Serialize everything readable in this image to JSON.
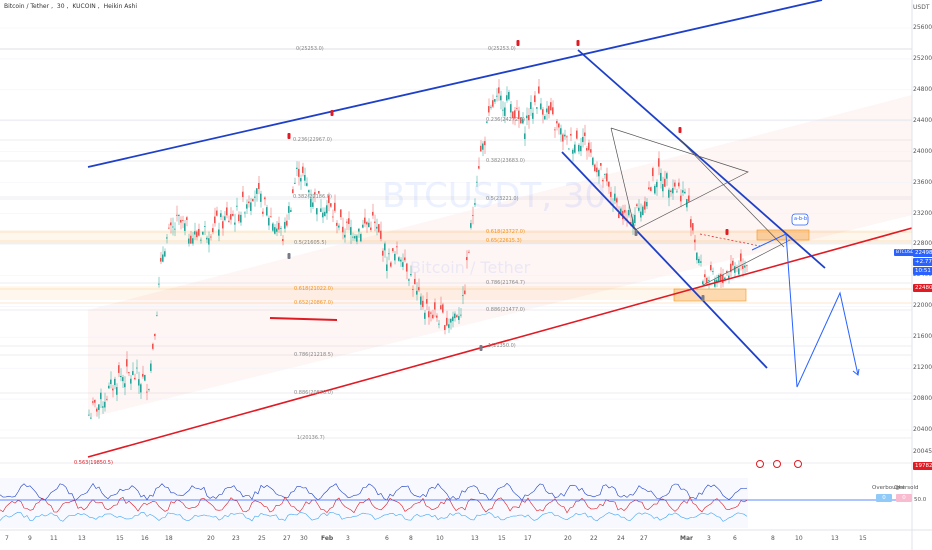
{
  "header": {
    "symbol": "Bitcoin / Tether",
    "interval": "30",
    "exchange": "KUCOIN",
    "style": "Heikin Ashi"
  },
  "watermark": {
    "ticker": "BTCUSDT, 30",
    "name": "Bitcoin / Tether"
  },
  "currency": "USDT",
  "price_axis": {
    "ticks": [
      "25600.0",
      "25200.0",
      "24800.0",
      "24400.0",
      "24000.0",
      "23600.0",
      "23200.0",
      "22800.0",
      "22400.0",
      "22000.0",
      "21600.0",
      "21200.0",
      "20800.0",
      "20400.0",
      "20045.0"
    ]
  },
  "time_axis": {
    "ticks": [
      "7",
      "9",
      "11",
      "13",
      "15",
      "16",
      "18",
      "20",
      "23",
      "25",
      "27",
      "30",
      "Feb",
      "3",
      "6",
      "8",
      "10",
      "13",
      "15",
      "17",
      "20",
      "22",
      "24",
      "27",
      "Mar",
      "3",
      "6",
      "8",
      "10",
      "13",
      "15"
    ]
  },
  "fib_labels": [
    "0(25253.0)",
    "0.236(22967.0)",
    "0.382(22186.0)",
    "0.5(21605.5)",
    "0.618(21022.0)",
    "0.652(20867.0)",
    "0.786(21218.5)",
    "0.886(20870.0)",
    "1(20136.7)",
    "0(25253.0)",
    "0.236(24272.0)",
    "0.382(23683.0)",
    "0.5(23221.0)",
    "0.618(23727.0)",
    "0.65(22615.3)",
    "0.786(21764.7)",
    "0.886(21477.0)",
    "1(21350.0)",
    "0.563(19850.5)"
  ],
  "price_tags": {
    "symbol_tag": "BTCUSDT",
    "last_price": "22498.3",
    "change": "+2.77%",
    "countdown": "10:51",
    "support": "22480.0",
    "bottom": "19782.4",
    "axis_low": "20045.0"
  },
  "annotation_badge": "a-b-b",
  "oscillator": {
    "labels": [
      "Overbought",
      "Oversold"
    ],
    "level": "50.0",
    "legend_values": [
      "0",
      "0"
    ]
  },
  "colors": {
    "up_candle": "#26a69a",
    "down_candle": "#ef5350",
    "channel": "#1e40c8",
    "support_line": "#e01b24",
    "fib_orange": "#f7931a",
    "accent": "#2962ff"
  },
  "chart_data": {
    "type": "candlestick",
    "series": [
      {
        "name": "BTCUSDT",
        "values": [
          20600,
          20800,
          21100,
          21100,
          21000,
          22800,
          23100,
          22900,
          23000,
          23100,
          23200,
          23500,
          23200,
          22900,
          23800,
          23400,
          23300,
          23000,
          23000,
          23100,
          22600,
          22700,
          22100,
          21900,
          21800,
          22000,
          23800,
          24600,
          24700,
          24300,
          24700,
          24400,
          24100,
          24200,
          23800,
          23400,
          23100,
          23300,
          23700,
          23600,
          23400,
          22400,
          22300,
          22500,
          22600
        ]
      }
    ],
    "ylim": [
      20045,
      25700
    ],
    "xlabel": "",
    "ylabel": "",
    "grid": true,
    "legend": "none"
  }
}
